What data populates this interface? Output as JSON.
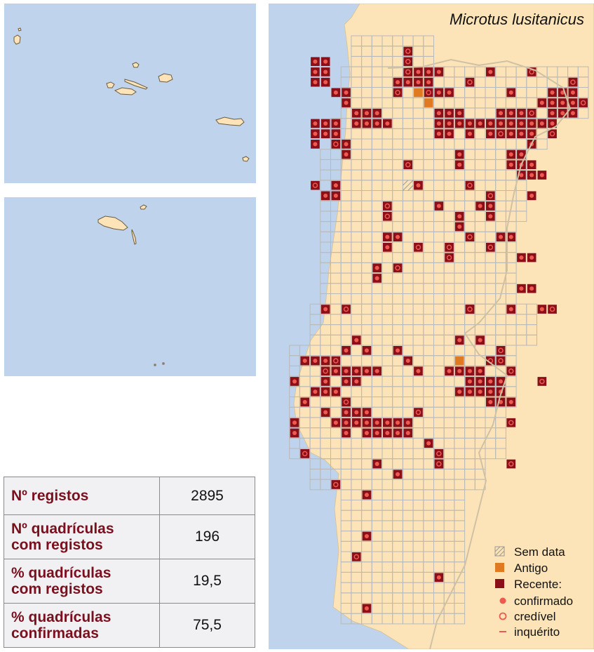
{
  "map": {
    "species": "Microtus lusitanicus",
    "colors": {
      "sea": "#bfd4ec",
      "land": "#fde4b8",
      "grid": "#b9b9b9",
      "old": "#e07a20",
      "recent": "#8b0f18",
      "marker": "#ef5a50"
    },
    "recent_cells_confirmed": [
      [
        3,
        2
      ],
      [
        3,
        3
      ],
      [
        3,
        4
      ],
      [
        4,
        2
      ],
      [
        4,
        3
      ],
      [
        4,
        4
      ],
      [
        13,
        3
      ],
      [
        13,
        4
      ],
      [
        12,
        4
      ],
      [
        11,
        4
      ],
      [
        15,
        3
      ],
      [
        14,
        3
      ],
      [
        14,
        4
      ],
      [
        16,
        5
      ],
      [
        20,
        3
      ],
      [
        5,
        5
      ],
      [
        6,
        5
      ],
      [
        6,
        6
      ],
      [
        15,
        5
      ],
      [
        22,
        5
      ],
      [
        26,
        5
      ],
      [
        27,
        5
      ],
      [
        28,
        5
      ],
      [
        28,
        4
      ],
      [
        28,
        6
      ],
      [
        26,
        6
      ],
      [
        27,
        6
      ],
      [
        25,
        6
      ],
      [
        26,
        7
      ],
      [
        7,
        7
      ],
      [
        8,
        7
      ],
      [
        9,
        7
      ],
      [
        8,
        8
      ],
      [
        9,
        8
      ],
      [
        10,
        8
      ],
      [
        7,
        8
      ],
      [
        4,
        8
      ],
      [
        5,
        8
      ],
      [
        3,
        8
      ],
      [
        4,
        9
      ],
      [
        5,
        9
      ],
      [
        3,
        9
      ],
      [
        3,
        10
      ],
      [
        15,
        7
      ],
      [
        16,
        7
      ],
      [
        15,
        8
      ],
      [
        17,
        8
      ],
      [
        18,
        8
      ],
      [
        19,
        8
      ],
      [
        20,
        8
      ],
      [
        21,
        8
      ],
      [
        16,
        8
      ],
      [
        17,
        7
      ],
      [
        15,
        9
      ],
      [
        16,
        9
      ],
      [
        18,
        9
      ],
      [
        20,
        9
      ],
      [
        21,
        7
      ],
      [
        22,
        7
      ],
      [
        23,
        7
      ],
      [
        22,
        8
      ],
      [
        23,
        9
      ],
      [
        24,
        9
      ],
      [
        22,
        9
      ],
      [
        24,
        8
      ],
      [
        25,
        8
      ],
      [
        23,
        8
      ],
      [
        26,
        8
      ],
      [
        27,
        7
      ],
      [
        28,
        7
      ],
      [
        6,
        10
      ],
      [
        6,
        11
      ],
      [
        17,
        11
      ],
      [
        17,
        12
      ],
      [
        22,
        11
      ],
      [
        23,
        11
      ],
      [
        23,
        12
      ],
      [
        22,
        12
      ],
      [
        24,
        12
      ],
      [
        24,
        13
      ],
      [
        23,
        13
      ],
      [
        25,
        13
      ],
      [
        24,
        10
      ],
      [
        5,
        14
      ],
      [
        4,
        15
      ],
      [
        5,
        15
      ],
      [
        13,
        14
      ],
      [
        24,
        15
      ],
      [
        15,
        16
      ],
      [
        19,
        16
      ],
      [
        20,
        16
      ],
      [
        17,
        17
      ],
      [
        17,
        18
      ],
      [
        20,
        17
      ],
      [
        11,
        19
      ],
      [
        10,
        19
      ],
      [
        10,
        20
      ],
      [
        21,
        19
      ],
      [
        22,
        19
      ],
      [
        23,
        24
      ],
      [
        24,
        24
      ],
      [
        24,
        21
      ],
      [
        23,
        21
      ],
      [
        9,
        22
      ],
      [
        9,
        23
      ],
      [
        4,
        26
      ],
      [
        18,
        26
      ],
      [
        22,
        26
      ],
      [
        25,
        26
      ],
      [
        7,
        29
      ],
      [
        6,
        30
      ],
      [
        8,
        30
      ],
      [
        3,
        31
      ],
      [
        2,
        31
      ],
      [
        4,
        31
      ],
      [
        5,
        32
      ],
      [
        6,
        32
      ],
      [
        7,
        32
      ],
      [
        8,
        32
      ],
      [
        9,
        32
      ],
      [
        6,
        33
      ],
      [
        7,
        33
      ],
      [
        13,
        32
      ],
      [
        4,
        33
      ],
      [
        1,
        33
      ],
      [
        11,
        30
      ],
      [
        12,
        31
      ],
      [
        16,
        32
      ],
      [
        17,
        29
      ],
      [
        19,
        29
      ],
      [
        17,
        32
      ],
      [
        18,
        32
      ],
      [
        19,
        32
      ],
      [
        18,
        33
      ],
      [
        19,
        33
      ],
      [
        20,
        33
      ],
      [
        21,
        33
      ],
      [
        17,
        34
      ],
      [
        18,
        34
      ],
      [
        20,
        34
      ],
      [
        21,
        34
      ],
      [
        19,
        34
      ],
      [
        20,
        35
      ],
      [
        21,
        35
      ],
      [
        22,
        35
      ],
      [
        2,
        35
      ],
      [
        3,
        34
      ],
      [
        4,
        34
      ],
      [
        5,
        34
      ],
      [
        4,
        36
      ],
      [
        6,
        36
      ],
      [
        7,
        36
      ],
      [
        8,
        36
      ],
      [
        5,
        37
      ],
      [
        6,
        37
      ],
      [
        7,
        37
      ],
      [
        8,
        37
      ],
      [
        9,
        37
      ],
      [
        10,
        37
      ],
      [
        11,
        37
      ],
      [
        12,
        37
      ],
      [
        9,
        38
      ],
      [
        10,
        38
      ],
      [
        11,
        38
      ],
      [
        12,
        38
      ],
      [
        8,
        38
      ],
      [
        6,
        38
      ],
      [
        1,
        37
      ],
      [
        1,
        38
      ],
      [
        2,
        40
      ],
      [
        9,
        41
      ],
      [
        14,
        39
      ],
      [
        15,
        41
      ],
      [
        11,
        42
      ],
      [
        8,
        44
      ],
      [
        8,
        48
      ],
      [
        15,
        52
      ],
      [
        8,
        55
      ]
    ],
    "recent_cells_credible": [
      [
        12,
        2
      ],
      [
        12,
        3
      ],
      [
        12,
        1
      ],
      [
        18,
        4
      ],
      [
        14,
        5
      ],
      [
        5,
        10
      ],
      [
        12,
        12
      ],
      [
        13,
        20
      ],
      [
        16,
        21
      ],
      [
        16,
        20
      ],
      [
        18,
        19
      ],
      [
        20,
        20
      ],
      [
        20,
        15
      ],
      [
        18,
        14
      ],
      [
        3,
        14
      ],
      [
        25,
        33
      ],
      [
        6,
        35
      ],
      [
        13,
        36
      ],
      [
        2,
        40
      ],
      [
        15,
        40
      ],
      [
        15,
        41
      ],
      [
        22,
        37
      ],
      [
        22,
        41
      ],
      [
        5,
        43
      ],
      [
        7,
        50
      ],
      [
        10,
        16
      ],
      [
        10,
        17
      ],
      [
        11,
        22
      ],
      [
        6,
        26
      ],
      [
        18,
        26
      ],
      [
        26,
        26
      ],
      [
        21,
        9
      ],
      [
        20,
        31
      ],
      [
        21,
        31
      ],
      [
        5,
        31
      ],
      [
        4,
        32
      ],
      [
        24,
        7
      ],
      [
        26,
        9
      ],
      [
        11,
        5
      ],
      [
        24,
        3
      ],
      [
        29,
        6
      ],
      [
        28,
        4
      ],
      [
        21,
        30
      ],
      [
        22,
        32
      ]
    ],
    "old_cells": [
      [
        12,
        3
      ],
      [
        12,
        4
      ],
      [
        13,
        4
      ],
      [
        13,
        5
      ],
      [
        14,
        5
      ],
      [
        14,
        6
      ],
      [
        17,
        31
      ]
    ],
    "nodata_cells": [
      [
        12,
        14
      ]
    ],
    "legend": {
      "nodata": "Sem data",
      "old": "Antigo",
      "recent": "Recente:",
      "confirmed": "confirmado",
      "credible": "credível",
      "survey": "inquérito"
    }
  },
  "stats": [
    {
      "label": "Nº registos",
      "value": "2895"
    },
    {
      "label": "Nº quadrículas\ncom registos",
      "value": "196"
    },
    {
      "label": "% quadrículas\ncom registos",
      "value": "19,5"
    },
    {
      "label": "% quadrículas\nconfirmadas",
      "value": "75,5"
    }
  ]
}
